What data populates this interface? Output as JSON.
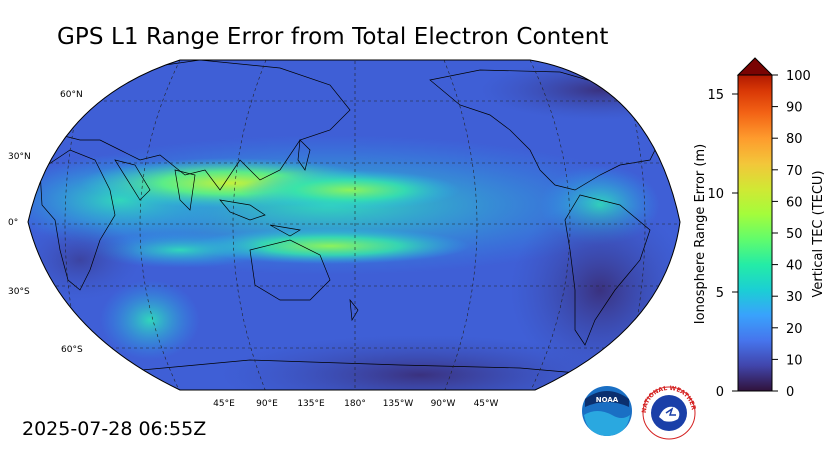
{
  "title": "GPS L1 Range Error from Total Electron Content",
  "timestamp": "2025-07-28 06:55Z",
  "map": {
    "projection": "Robinson",
    "central_longitude": "180°",
    "lat_labels": [
      "60°N",
      "30°N",
      "0°",
      "30°S",
      "60°S"
    ],
    "lon_labels": [
      "45°E",
      "90°E",
      "135°E",
      "180°",
      "135°W",
      "90°W",
      "45°W"
    ],
    "gridlines": "dashed"
  },
  "colorbar": {
    "left_axis_label": "Ionosphere Range Error (m)",
    "left_ticks": [
      "0",
      "5",
      "10",
      "15"
    ],
    "right_axis_label": "Vertical TEC (TECU)",
    "right_ticks": [
      "0",
      "10",
      "20",
      "30",
      "40",
      "50",
      "60",
      "70",
      "80",
      "90",
      "100"
    ],
    "extend": "max",
    "colormap": "turbo"
  },
  "logos": {
    "noaa_text": "NOAA",
    "nws_text": "NATIONAL WEATHER SERVICE"
  }
}
